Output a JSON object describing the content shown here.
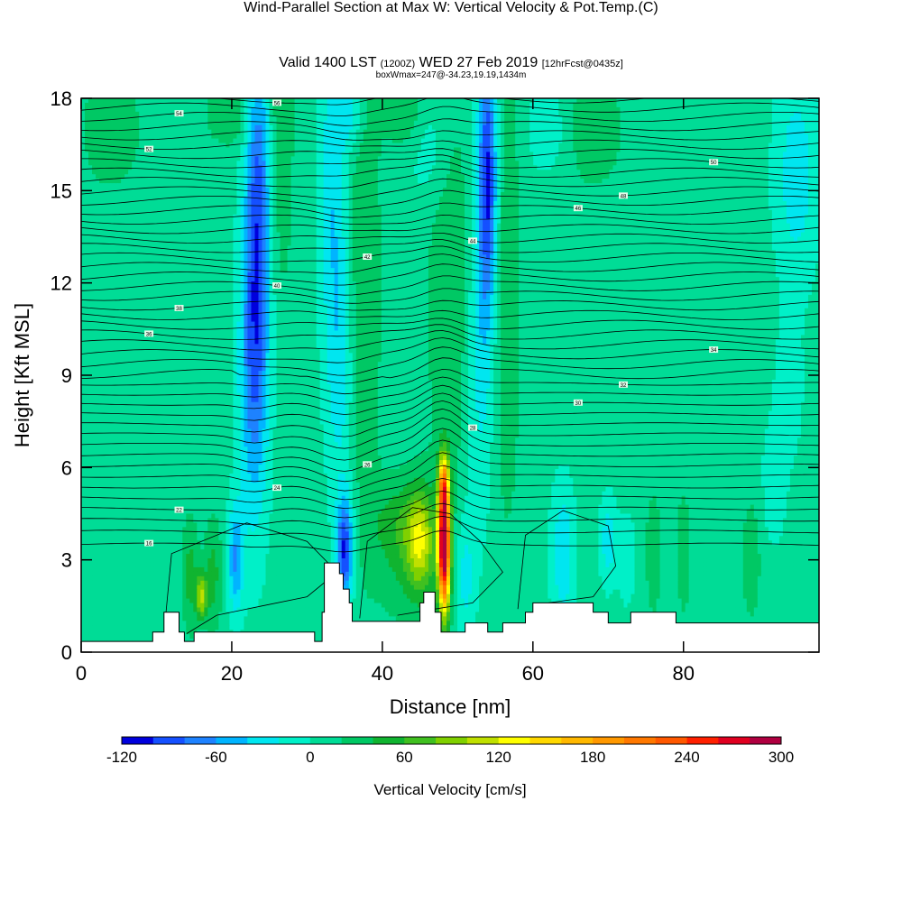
{
  "title": {
    "main": "Wind-Parallel Section at Max W: Vertical Velocity & Pot.Temp.",
    "main_suffix": "(C)",
    "valid_prefix": "Valid 1400 LST",
    "valid_zulu": "(1200Z)",
    "valid_date": "WED 27 Feb 2019",
    "valid_fcst": "[12hrFcst@0435z]",
    "box_info": "boxWmax=247@-34.23,19.19,1434m"
  },
  "chart_data": {
    "type": "heatmap",
    "xlabel": "Distance [nm]",
    "ylabel": "Height [Kft MSL]",
    "xlim": [
      0,
      98
    ],
    "ylim": [
      0,
      18
    ],
    "xticks": [
      0,
      20,
      40,
      60,
      80
    ],
    "yticks": [
      0,
      3,
      6,
      9,
      12,
      15,
      18
    ],
    "colorbar": {
      "label": "Vertical Velocity [cm/s]",
      "tick_labels": [
        -120,
        -60,
        0,
        60,
        120,
        180,
        240,
        300
      ],
      "levels": [
        -120,
        -100,
        -80,
        -60,
        -40,
        -20,
        0,
        20,
        40,
        60,
        80,
        100,
        120,
        140,
        160,
        180,
        200,
        220,
        240,
        260,
        280,
        300
      ],
      "colors": [
        "#0000dd",
        "#1550ff",
        "#1e82ff",
        "#00b4ff",
        "#00e6f0",
        "#00f0c8",
        "#00dc96",
        "#00c864",
        "#10b430",
        "#40c020",
        "#80d000",
        "#c0e000",
        "#ffff00",
        "#ffd800",
        "#ffb800",
        "#ff9800",
        "#ff7800",
        "#ff5800",
        "#ff2000",
        "#e00020",
        "#b00040"
      ]
    },
    "background_w": 8,
    "w_features": [
      {
        "x": 23.5,
        "y": 14,
        "sx": 1.2,
        "sy": 5,
        "w": -95
      },
      {
        "x": 22.5,
        "y": 9,
        "sx": 1.3,
        "sy": 3.5,
        "w": -50
      },
      {
        "x": 33.5,
        "y": 15,
        "sx": 1.3,
        "sy": 4,
        "w": -45
      },
      {
        "x": 34.5,
        "y": 9,
        "sx": 1.3,
        "sy": 3,
        "w": -35
      },
      {
        "x": 35,
        "y": 3.3,
        "sx": 0.8,
        "sy": 1.2,
        "w": -110
      },
      {
        "x": 54,
        "y": 15.5,
        "sx": 0.9,
        "sy": 3,
        "w": -110
      },
      {
        "x": 53,
        "y": 10,
        "sx": 1.3,
        "sy": 4,
        "w": -40
      },
      {
        "x": 36,
        "y": 17.5,
        "sx": 1.2,
        "sy": 0.8,
        "w": -40
      },
      {
        "x": 20.5,
        "y": 3,
        "sx": 0.7,
        "sy": 1.2,
        "w": -70
      },
      {
        "x": 26.5,
        "y": 17,
        "sx": 1.2,
        "sy": 4,
        "w": 30
      },
      {
        "x": 37.5,
        "y": 12,
        "sx": 1.6,
        "sy": 6,
        "w": 32
      },
      {
        "x": 49,
        "y": 12,
        "sx": 2.2,
        "sy": 5,
        "w": 30
      },
      {
        "x": 56.5,
        "y": 12,
        "sx": 1.4,
        "sy": 6,
        "w": 28
      },
      {
        "x": 46.5,
        "y": 16.5,
        "sx": 2,
        "sy": 1.5,
        "w": -25
      },
      {
        "x": 48.2,
        "y": 3.5,
        "sx": 0.55,
        "sy": 1.5,
        "w": 310
      },
      {
        "x": 48.1,
        "y": 5.5,
        "sx": 0.45,
        "sy": 0.6,
        "w": 100
      },
      {
        "x": 45,
        "y": 3.6,
        "sx": 1.2,
        "sy": 1.1,
        "w": 80
      },
      {
        "x": 43.5,
        "y": 3.4,
        "sx": 3,
        "sy": 1.6,
        "w": 40
      },
      {
        "x": 42,
        "y": 4.2,
        "sx": 2.5,
        "sy": 0.8,
        "w": 20
      },
      {
        "x": 14.5,
        "y": 2.5,
        "sx": 0.8,
        "sy": 1.3,
        "w": 40
      },
      {
        "x": 17.5,
        "y": 2.5,
        "sx": 0.8,
        "sy": 1.3,
        "w": 40
      },
      {
        "x": 16,
        "y": 1.8,
        "sx": 0.5,
        "sy": 0.5,
        "w": 95
      },
      {
        "x": 51,
        "y": 2.5,
        "sx": 0.9,
        "sy": 1.5,
        "w": -38
      },
      {
        "x": 64,
        "y": 3.2,
        "sx": 1.1,
        "sy": 1.6,
        "w": -45
      },
      {
        "x": 70,
        "y": 3.6,
        "sx": 0.8,
        "sy": 1,
        "w": -40
      },
      {
        "x": 72.5,
        "y": 3,
        "sx": 0.8,
        "sy": 1,
        "w": -25
      },
      {
        "x": 76,
        "y": 3.2,
        "sx": 0.7,
        "sy": 1.4,
        "w": 30
      },
      {
        "x": 80,
        "y": 3.2,
        "sx": 0.7,
        "sy": 1.4,
        "w": 28
      },
      {
        "x": 89,
        "y": 3,
        "sx": 0.9,
        "sy": 1.4,
        "w": 28
      },
      {
        "x": 95,
        "y": 15.5,
        "sx": 2,
        "sy": 2.5,
        "w": -40
      },
      {
        "x": 94,
        "y": 8.5,
        "sx": 1.2,
        "sy": 1.5,
        "w": -25
      },
      {
        "x": 92,
        "y": 5.5,
        "sx": 1.2,
        "sy": 1.5,
        "w": -20
      },
      {
        "x": 20,
        "y": 17.5,
        "sx": 2.5,
        "sy": 0.8,
        "w": 30
      },
      {
        "x": 43,
        "y": 17.5,
        "sx": 2,
        "sy": 0.8,
        "w": 30
      },
      {
        "x": 68,
        "y": 17,
        "sx": 3,
        "sy": 1.5,
        "w": 25
      },
      {
        "x": 62,
        "y": 17,
        "sx": 2,
        "sy": 1,
        "w": -25
      },
      {
        "x": 4,
        "y": 17,
        "sx": 3,
        "sy": 1.5,
        "w": 25
      }
    ],
    "terrain": [
      [
        0,
        0.35
      ],
      [
        9.5,
        0.35
      ],
      [
        9.5,
        0.65
      ],
      [
        11,
        0.65
      ],
      [
        11,
        1.3
      ],
      [
        13,
        1.3
      ],
      [
        13,
        0.65
      ],
      [
        13.7,
        0.65
      ],
      [
        13.7,
        0.35
      ],
      [
        15,
        0.35
      ],
      [
        15,
        0.65
      ],
      [
        31,
        0.65
      ],
      [
        31,
        0.35
      ],
      [
        32,
        0.35
      ],
      [
        32,
        1.3
      ],
      [
        32.3,
        1.3
      ],
      [
        32.3,
        2.9
      ],
      [
        34.3,
        2.9
      ],
      [
        34.3,
        2.55
      ],
      [
        34.8,
        2.55
      ],
      [
        34.8,
        2.05
      ],
      [
        35.6,
        2.05
      ],
      [
        35.6,
        1.6
      ],
      [
        36,
        1.6
      ],
      [
        36,
        1
      ],
      [
        45,
        1
      ],
      [
        45,
        1.6
      ],
      [
        45.5,
        1.6
      ],
      [
        45.5,
        1.95
      ],
      [
        47,
        1.95
      ],
      [
        47,
        1.3
      ],
      [
        47.8,
        1.3
      ],
      [
        47.8,
        0.65
      ],
      [
        51,
        0.65
      ],
      [
        51,
        0.95
      ],
      [
        54,
        0.95
      ],
      [
        54,
        0.65
      ],
      [
        56,
        0.65
      ],
      [
        56,
        0.95
      ],
      [
        59,
        0.95
      ],
      [
        59,
        1.3
      ],
      [
        60,
        1.3
      ],
      [
        60,
        1.6
      ],
      [
        68,
        1.6
      ],
      [
        68,
        1.3
      ],
      [
        70,
        1.3
      ],
      [
        70,
        0.95
      ],
      [
        73,
        0.95
      ],
      [
        73,
        1.3
      ],
      [
        79,
        1.3
      ],
      [
        79,
        0.95
      ],
      [
        98,
        0.95
      ]
    ],
    "isentrope_count": 46,
    "isentrope_labels": [
      "16",
      "22",
      "24",
      "26",
      "28",
      "30",
      "32",
      "34",
      "36",
      "38",
      "40",
      "42",
      "44",
      "46",
      "48",
      "50",
      "52",
      "54",
      "56"
    ]
  }
}
